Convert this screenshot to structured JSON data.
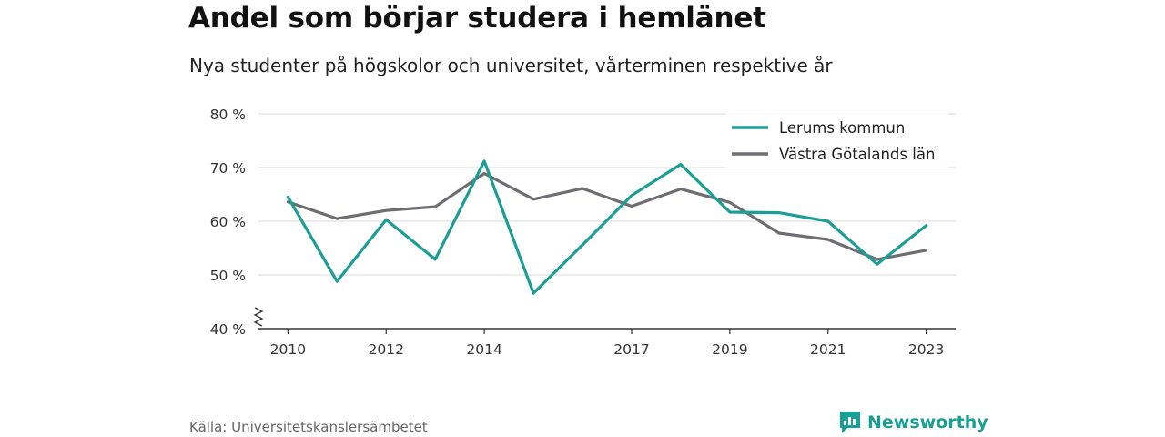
{
  "title": "Andel som börjar studera i hemlänet",
  "subtitle": "Nya studenter på högskolor och universitet, vårterminen respektive år",
  "source": "Källa: Universitetskanslersämbetet",
  "brand": {
    "name": "Newsworthy",
    "icon": "newsworthy-logo-icon",
    "color": "#1a9e95"
  },
  "chart_data": {
    "type": "line",
    "x": [
      2010,
      2011,
      2012,
      2013,
      2014,
      2015,
      2016,
      2017,
      2018,
      2019,
      2020,
      2021,
      2022,
      2023
    ],
    "x_tick_labels": [
      "2010",
      "2012",
      "2014",
      "2017",
      "2019",
      "2021",
      "2023"
    ],
    "x_tick_values": [
      2010,
      2012,
      2014,
      2017,
      2019,
      2021,
      2023
    ],
    "y_tick_labels": [
      "40 %",
      "50 %",
      "60 %",
      "70 %",
      "80 %"
    ],
    "y_tick_values": [
      40,
      50,
      60,
      70,
      80
    ],
    "ylim": [
      40,
      80
    ],
    "xlim": [
      2009.4,
      2023.6
    ],
    "y_axis_break": true,
    "grid": true,
    "legend_position": "top-right",
    "series": [
      {
        "name": "Lerums kommun",
        "color": "#1a9e95",
        "values": [
          64.5,
          48.8,
          60.3,
          52.9,
          71.2,
          46.6,
          55.6,
          64.8,
          70.6,
          61.7,
          61.6,
          60.0,
          52.0,
          59.2
        ]
      },
      {
        "name": "Västra Götalands län",
        "color": "#6e6d72",
        "values": [
          63.6,
          60.5,
          62.0,
          62.7,
          68.9,
          64.1,
          66.1,
          62.8,
          66.0,
          63.5,
          57.8,
          56.6,
          52.9,
          54.6
        ]
      }
    ]
  }
}
